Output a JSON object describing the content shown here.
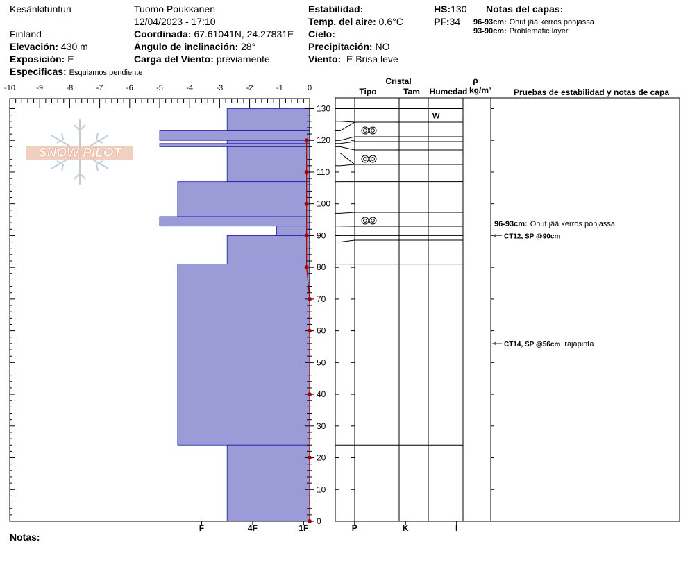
{
  "header": {
    "location": "Kesänkitunturi",
    "observer": "Tuomo Poukkanen",
    "datetime": "12/04/2023 - 17:10",
    "country": "Finland",
    "elevation_label": "Elevación:",
    "elevation": "430 m",
    "aspect_label": "Exposición:",
    "aspect": "E",
    "specifics_label": "Especificas:",
    "specifics": "Esquiamos pendiente",
    "coords_label": "Coordinada:",
    "coords": "67.61041N, 24.27831E",
    "slope_label": "Ángulo de inclinación:",
    "slope": "28°",
    "wind_load_label": "Carga del Viento:",
    "wind_load": "previamente",
    "stability_label": "Estabilidad:",
    "stability": "",
    "air_temp_label": "Temp. del aire:",
    "air_temp": "0.6°C",
    "sky_label": "Cielo:",
    "sky": "",
    "precip_label": "Precipitación:",
    "precip": "NO",
    "wind_label": "Viento:",
    "wind": "E Brisa leve",
    "hs_label": "HS:",
    "hs": "130",
    "pf_label": "PF:",
    "pf": "34",
    "layer_notes_title": "Notas del capas:",
    "layer_notes": [
      {
        "range": "96-93cm:",
        "text": "Ohut jää kerros pohjassa"
      },
      {
        "range": "93-90cm:",
        "text": "Problematic layer"
      }
    ]
  },
  "notes_label": "Notas:",
  "logo_text": "SNOW PILOT",
  "table": {
    "crystal_label": "Cristal",
    "type_label": "Tipo",
    "size_label": "Tam",
    "wetness_label": "Humedad",
    "rho_label": "ρ",
    "density_unit_label": "kg/m³",
    "tests_label": "Pruebas de estabilidad y notas de capa",
    "wetness_marks": [
      {
        "top": 130,
        "bottom": 126,
        "text": "W"
      }
    ],
    "grain_symbols": [
      {
        "depth": 123
      },
      {
        "depth": 114
      },
      {
        "depth": 94.5
      }
    ],
    "layer_note": {
      "depth": 93,
      "range": "96-93cm:",
      "text": "Ohut jää kerros pohjassa"
    },
    "tests": [
      {
        "depth": 90,
        "label": "CT12, SP @90cm",
        "note": ""
      },
      {
        "depth": 56,
        "label": "CT14, SP @56cm",
        "note": "rajapinta"
      }
    ]
  },
  "colors": {
    "hardness_fill": "#9b9bd7",
    "hardness_edge": "#1a1aa0",
    "temperature": "#aa0000"
  },
  "chart_data": {
    "type": "snow_profile",
    "temperature_axis": {
      "ticks": [
        "-10",
        "-9",
        "-8",
        "-7",
        "-6",
        "-5",
        "-4",
        "-3",
        "-2",
        "-1",
        "0"
      ],
      "range": [
        -10,
        0
      ]
    },
    "depth_axis": {
      "range": [
        0,
        130
      ],
      "ticks": [
        "0",
        "10",
        "20",
        "30",
        "40",
        "50",
        "60",
        "70",
        "80",
        "90",
        "100",
        "110",
        "120",
        "130"
      ]
    },
    "hardness_axis": {
      "labels": [
        "I",
        "K",
        "P",
        "1F",
        "4F",
        "F"
      ],
      "values": [
        4.9,
        3.2,
        1.5,
        -0.2,
        -1.9,
        -3.6
      ]
    },
    "hardness_layers": [
      {
        "top": 130,
        "bottom": 123,
        "hardness": -2.75
      },
      {
        "top": 123,
        "bottom": 120,
        "hardness": -5.0
      },
      {
        "top": 120,
        "bottom": 119,
        "hardness": -2.75
      },
      {
        "top": 119,
        "bottom": 118,
        "hardness": -5.0
      },
      {
        "top": 118,
        "bottom": 107,
        "hardness": -2.75
      },
      {
        "top": 107,
        "bottom": 96,
        "hardness": -4.4
      },
      {
        "top": 96,
        "bottom": 93,
        "hardness": -5.0
      },
      {
        "top": 93,
        "bottom": 90,
        "hardness": -1.1
      },
      {
        "top": 90,
        "bottom": 81,
        "hardness": -2.75
      },
      {
        "top": 81,
        "bottom": 24,
        "hardness": -4.4
      },
      {
        "top": 24,
        "bottom": 0,
        "hardness": -2.75
      }
    ],
    "temperature_profile": [
      {
        "depth": 120,
        "temp": -0.1
      },
      {
        "depth": 110,
        "temp": -0.1
      },
      {
        "depth": 100,
        "temp": -0.1
      },
      {
        "depth": 90,
        "temp": -0.1
      },
      {
        "depth": 80,
        "temp": -0.1
      },
      {
        "depth": 70,
        "temp": 0.0
      },
      {
        "depth": 60,
        "temp": 0.0
      },
      {
        "depth": 40,
        "temp": 0.0
      },
      {
        "depth": 20,
        "temp": 0.0
      },
      {
        "depth": 0,
        "temp": 0.0
      }
    ],
    "layer_boundaries": [
      130,
      126,
      123,
      120,
      119,
      118,
      116,
      112,
      107,
      97,
      93,
      90,
      88,
      81,
      24
    ]
  }
}
